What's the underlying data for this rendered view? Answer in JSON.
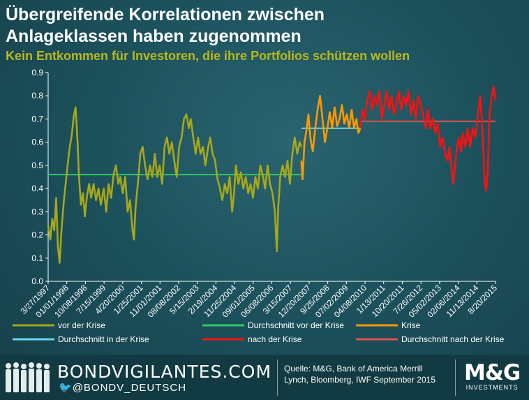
{
  "title_line1": "Übergreifende Korrelationen zwischen",
  "title_line2": "Anlageklassen haben zugenommen",
  "subtitle": "Kein Entkommen für Investoren, die ihre Portfolios schützen wollen",
  "colors": {
    "pre": "#a7a71a",
    "pre_avg": "#2fc860",
    "crisis": "#ff9900",
    "crisis_avg": "#6ad6ec",
    "post": "#ff1010",
    "post_avg": "#e05050"
  },
  "chart_data": {
    "type": "line",
    "ylim": [
      0.0,
      0.9
    ],
    "yticks": [
      "0.0",
      "0.1",
      "0.2",
      "0.3",
      "0.4",
      "0.5",
      "0.6",
      "0.7",
      "0.8",
      "0.9"
    ],
    "x_tick_labels": [
      "3/27/1997",
      "01/01/1998",
      "10/08/1998",
      "7/15/1999",
      "4/20/2000",
      "1/25/2001",
      "11/01/2001",
      "08/08/2002",
      "5/15/2003",
      "2/19/2004",
      "11/25/2004",
      "09/01/2005",
      "06/08/2006",
      "3/15/2007",
      "12/20/2007",
      "9/25/2008",
      "07/02/2009",
      "04/08/2010",
      "1/13/2011",
      "10/20/2011",
      "7/26/2012",
      "05/02/2013",
      "02/06/2014",
      "11/13/2014",
      "8/20/2015"
    ],
    "x_range": [
      1997.23,
      2015.64
    ],
    "series": [
      {
        "name": "vor der Krise",
        "key": "pre",
        "points": [
          [
            1997.23,
            0.24
          ],
          [
            1997.32,
            0.18
          ],
          [
            1997.4,
            0.27
          ],
          [
            1997.48,
            0.22
          ],
          [
            1997.56,
            0.36
          ],
          [
            1997.63,
            0.15
          ],
          [
            1997.7,
            0.08
          ],
          [
            1997.78,
            0.22
          ],
          [
            1997.88,
            0.35
          ],
          [
            1997.98,
            0.45
          ],
          [
            1998.05,
            0.52
          ],
          [
            1998.12,
            0.58
          ],
          [
            1998.2,
            0.63
          ],
          [
            1998.28,
            0.71
          ],
          [
            1998.36,
            0.75
          ],
          [
            1998.44,
            0.6
          ],
          [
            1998.5,
            0.45
          ],
          [
            1998.58,
            0.33
          ],
          [
            1998.66,
            0.38
          ],
          [
            1998.74,
            0.28
          ],
          [
            1998.83,
            0.37
          ],
          [
            1998.92,
            0.42
          ],
          [
            1999.0,
            0.36
          ],
          [
            1999.1,
            0.42
          ],
          [
            1999.2,
            0.35
          ],
          [
            1999.3,
            0.4
          ],
          [
            1999.4,
            0.33
          ],
          [
            1999.52,
            0.4
          ],
          [
            1999.62,
            0.3
          ],
          [
            1999.72,
            0.42
          ],
          [
            1999.82,
            0.36
          ],
          [
            1999.92,
            0.46
          ],
          [
            2000.02,
            0.5
          ],
          [
            2000.12,
            0.42
          ],
          [
            2000.2,
            0.45
          ],
          [
            2000.3,
            0.38
          ],
          [
            2000.4,
            0.45
          ],
          [
            2000.5,
            0.3
          ],
          [
            2000.6,
            0.35
          ],
          [
            2000.7,
            0.22
          ],
          [
            2000.76,
            0.18
          ],
          [
            2000.83,
            0.32
          ],
          [
            2000.92,
            0.42
          ],
          [
            2001.02,
            0.55
          ],
          [
            2001.12,
            0.58
          ],
          [
            2001.22,
            0.5
          ],
          [
            2001.32,
            0.44
          ],
          [
            2001.42,
            0.5
          ],
          [
            2001.52,
            0.45
          ],
          [
            2001.62,
            0.55
          ],
          [
            2001.72,
            0.45
          ],
          [
            2001.82,
            0.5
          ],
          [
            2001.92,
            0.42
          ],
          [
            2002.02,
            0.58
          ],
          [
            2002.12,
            0.62
          ],
          [
            2002.22,
            0.55
          ],
          [
            2002.32,
            0.6
          ],
          [
            2002.42,
            0.52
          ],
          [
            2002.52,
            0.45
          ],
          [
            2002.62,
            0.58
          ],
          [
            2002.72,
            0.62
          ],
          [
            2002.82,
            0.7
          ],
          [
            2002.92,
            0.72
          ],
          [
            2003.02,
            0.66
          ],
          [
            2003.1,
            0.7
          ],
          [
            2003.2,
            0.62
          ],
          [
            2003.3,
            0.55
          ],
          [
            2003.4,
            0.62
          ],
          [
            2003.5,
            0.55
          ],
          [
            2003.6,
            0.58
          ],
          [
            2003.7,
            0.5
          ],
          [
            2003.8,
            0.57
          ],
          [
            2003.9,
            0.62
          ],
          [
            2004.0,
            0.55
          ],
          [
            2004.1,
            0.52
          ],
          [
            2004.2,
            0.44
          ],
          [
            2004.3,
            0.4
          ],
          [
            2004.4,
            0.35
          ],
          [
            2004.5,
            0.42
          ],
          [
            2004.6,
            0.38
          ],
          [
            2004.7,
            0.45
          ],
          [
            2004.8,
            0.3
          ],
          [
            2004.88,
            0.38
          ],
          [
            2004.96,
            0.5
          ],
          [
            2005.06,
            0.42
          ],
          [
            2005.16,
            0.47
          ],
          [
            2005.26,
            0.4
          ],
          [
            2005.36,
            0.45
          ],
          [
            2005.46,
            0.38
          ],
          [
            2005.56,
            0.42
          ],
          [
            2005.66,
            0.36
          ],
          [
            2005.76,
            0.45
          ],
          [
            2005.86,
            0.4
          ],
          [
            2005.96,
            0.5
          ],
          [
            2006.06,
            0.46
          ],
          [
            2006.16,
            0.4
          ],
          [
            2006.26,
            0.5
          ],
          [
            2006.36,
            0.42
          ],
          [
            2006.46,
            0.38
          ],
          [
            2006.56,
            0.3
          ],
          [
            2006.64,
            0.13
          ],
          [
            2006.7,
            0.32
          ],
          [
            2006.78,
            0.45
          ],
          [
            2006.88,
            0.5
          ],
          [
            2006.98,
            0.45
          ],
          [
            2007.08,
            0.52
          ],
          [
            2007.18,
            0.42
          ],
          [
            2007.28,
            0.55
          ],
          [
            2007.38,
            0.62
          ],
          [
            2007.48,
            0.55
          ],
          [
            2007.58,
            0.6
          ],
          [
            2007.65,
            0.58
          ]
        ]
      },
      {
        "name": "Krise",
        "key": "crisis",
        "points": [
          [
            2007.65,
            0.52
          ],
          [
            2007.7,
            0.44
          ],
          [
            2007.78,
            0.6
          ],
          [
            2007.86,
            0.65
          ],
          [
            2007.94,
            0.72
          ],
          [
            2008.02,
            0.62
          ],
          [
            2008.12,
            0.56
          ],
          [
            2008.22,
            0.66
          ],
          [
            2008.32,
            0.74
          ],
          [
            2008.42,
            0.8
          ],
          [
            2008.52,
            0.7
          ],
          [
            2008.62,
            0.6
          ],
          [
            2008.72,
            0.66
          ],
          [
            2008.82,
            0.73
          ],
          [
            2008.92,
            0.66
          ],
          [
            2009.02,
            0.75
          ],
          [
            2009.12,
            0.67
          ],
          [
            2009.22,
            0.7
          ],
          [
            2009.32,
            0.76
          ],
          [
            2009.42,
            0.68
          ],
          [
            2009.52,
            0.72
          ],
          [
            2009.62,
            0.66
          ],
          [
            2009.72,
            0.74
          ],
          [
            2009.82,
            0.66
          ],
          [
            2009.92,
            0.7
          ],
          [
            2010.0,
            0.64
          ],
          [
            2010.08,
            0.66
          ]
        ]
      },
      {
        "name": "nach der Krise",
        "key": "post",
        "points": [
          [
            2010.08,
            0.66
          ],
          [
            2010.16,
            0.74
          ],
          [
            2010.26,
            0.7
          ],
          [
            2010.36,
            0.78
          ],
          [
            2010.46,
            0.82
          ],
          [
            2010.56,
            0.74
          ],
          [
            2010.66,
            0.8
          ],
          [
            2010.76,
            0.76
          ],
          [
            2010.86,
            0.82
          ],
          [
            2010.96,
            0.7
          ],
          [
            2011.06,
            0.76
          ],
          [
            2011.16,
            0.82
          ],
          [
            2011.26,
            0.74
          ],
          [
            2011.36,
            0.8
          ],
          [
            2011.46,
            0.72
          ],
          [
            2011.56,
            0.76
          ],
          [
            2011.66,
            0.82
          ],
          [
            2011.76,
            0.74
          ],
          [
            2011.86,
            0.8
          ],
          [
            2011.96,
            0.76
          ],
          [
            2012.06,
            0.82
          ],
          [
            2012.16,
            0.72
          ],
          [
            2012.26,
            0.78
          ],
          [
            2012.36,
            0.7
          ],
          [
            2012.46,
            0.8
          ],
          [
            2012.56,
            0.76
          ],
          [
            2012.66,
            0.72
          ],
          [
            2012.76,
            0.66
          ],
          [
            2012.86,
            0.74
          ],
          [
            2012.96,
            0.66
          ],
          [
            2013.06,
            0.7
          ],
          [
            2013.16,
            0.64
          ],
          [
            2013.26,
            0.68
          ],
          [
            2013.36,
            0.58
          ],
          [
            2013.46,
            0.62
          ],
          [
            2013.56,
            0.55
          ],
          [
            2013.66,
            0.52
          ],
          [
            2013.74,
            0.58
          ],
          [
            2013.84,
            0.48
          ],
          [
            2013.9,
            0.42
          ],
          [
            2013.98,
            0.5
          ],
          [
            2014.06,
            0.58
          ],
          [
            2014.14,
            0.62
          ],
          [
            2014.22,
            0.56
          ],
          [
            2014.3,
            0.64
          ],
          [
            2014.4,
            0.58
          ],
          [
            2014.5,
            0.66
          ],
          [
            2014.6,
            0.58
          ],
          [
            2014.7,
            0.66
          ],
          [
            2014.8,
            0.62
          ],
          [
            2014.9,
            0.7
          ],
          [
            2015.0,
            0.8
          ],
          [
            2015.08,
            0.7
          ],
          [
            2015.14,
            0.56
          ],
          [
            2015.2,
            0.42
          ],
          [
            2015.26,
            0.39
          ],
          [
            2015.32,
            0.48
          ],
          [
            2015.4,
            0.72
          ],
          [
            2015.48,
            0.8
          ],
          [
            2015.56,
            0.84
          ],
          [
            2015.64,
            0.78
          ]
        ]
      }
    ],
    "averages": [
      {
        "name": "Durchschnitt vor der Krise",
        "key": "pre_avg",
        "value": 0.46,
        "x_from": 1997.23,
        "x_to": 2007.65
      },
      {
        "name": "Durchschnitt in der Krise",
        "key": "crisis_avg",
        "value": 0.66,
        "x_from": 2007.65,
        "x_to": 2010.08
      },
      {
        "name": "Durchschnitt nach der Krise",
        "key": "post_avg",
        "value": 0.69,
        "x_from": 2010.08,
        "x_to": 2015.64
      }
    ],
    "legend": [
      {
        "label": "vor der Krise",
        "key": "pre"
      },
      {
        "label": "Durchschnitt vor der Krise",
        "key": "pre_avg"
      },
      {
        "label": "Krise",
        "key": "crisis"
      },
      {
        "label": "Durchschnitt in der Krise",
        "key": "crisis_avg"
      },
      {
        "label": "nach der Krise",
        "key": "post"
      },
      {
        "label": "Durchschnitt nach der Krise",
        "key": "post_avg"
      }
    ]
  },
  "footer": {
    "brand": "BONDVIGILANTES.COM",
    "twitter": "@BONDV_DEUTSCH",
    "source": "Quelle: M&G, Bank of America Merrill Lynch, Bloomberg, IWF September 2015",
    "logo_main": "M&G",
    "logo_sub": "INVESTMENTS"
  }
}
